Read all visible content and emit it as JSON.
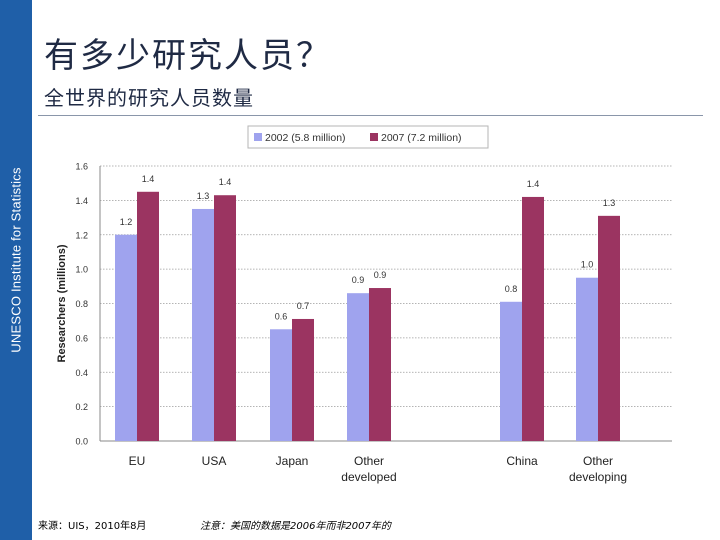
{
  "sidebar": {
    "text": "UNESCO Institute for Statistics"
  },
  "title": "有多少研究人员？",
  "subtitle": "全世界的研究人员数量",
  "footer": {
    "source": "来源：UIS，2010年8月",
    "note": "注意：美国的数据是2006年而非2007年的"
  },
  "colors": {
    "sidebar": "#1f5fa8",
    "series_2002": "#9fa3ee",
    "series_2007": "#9b3461"
  },
  "chart_data": {
    "type": "bar",
    "ylabel": "Researchers (millions)",
    "ylim": [
      0,
      1.6
    ],
    "yticks": [
      "0.0",
      "0.2",
      "0.4",
      "0.6",
      "0.8",
      "1.0",
      "1.2",
      "1.4",
      "1.6"
    ],
    "categories": [
      "EU",
      "USA",
      "Japan",
      "Other developed",
      "China",
      "Other developing"
    ],
    "category_labels": [
      [
        "EU"
      ],
      [
        "USA"
      ],
      [
        "Japan"
      ],
      [
        "Other",
        "developed"
      ],
      [
        "China"
      ],
      [
        "Other",
        "developing"
      ]
    ],
    "series": [
      {
        "name": "2002 (5.8 million)",
        "values": [
          1.2,
          1.35,
          0.65,
          0.86,
          0.81,
          0.95
        ],
        "labels": [
          "1.2",
          "1.3",
          "0.6",
          "0.9",
          "0.8",
          "1.0"
        ]
      },
      {
        "name": "2007 (7.2 million)",
        "values": [
          1.45,
          1.43,
          0.71,
          0.89,
          1.42,
          1.31
        ],
        "labels": [
          "1.4",
          "1.4",
          "0.7",
          "0.9",
          "1.4",
          "1.3"
        ]
      }
    ],
    "grid": true,
    "legend_position": "top"
  }
}
